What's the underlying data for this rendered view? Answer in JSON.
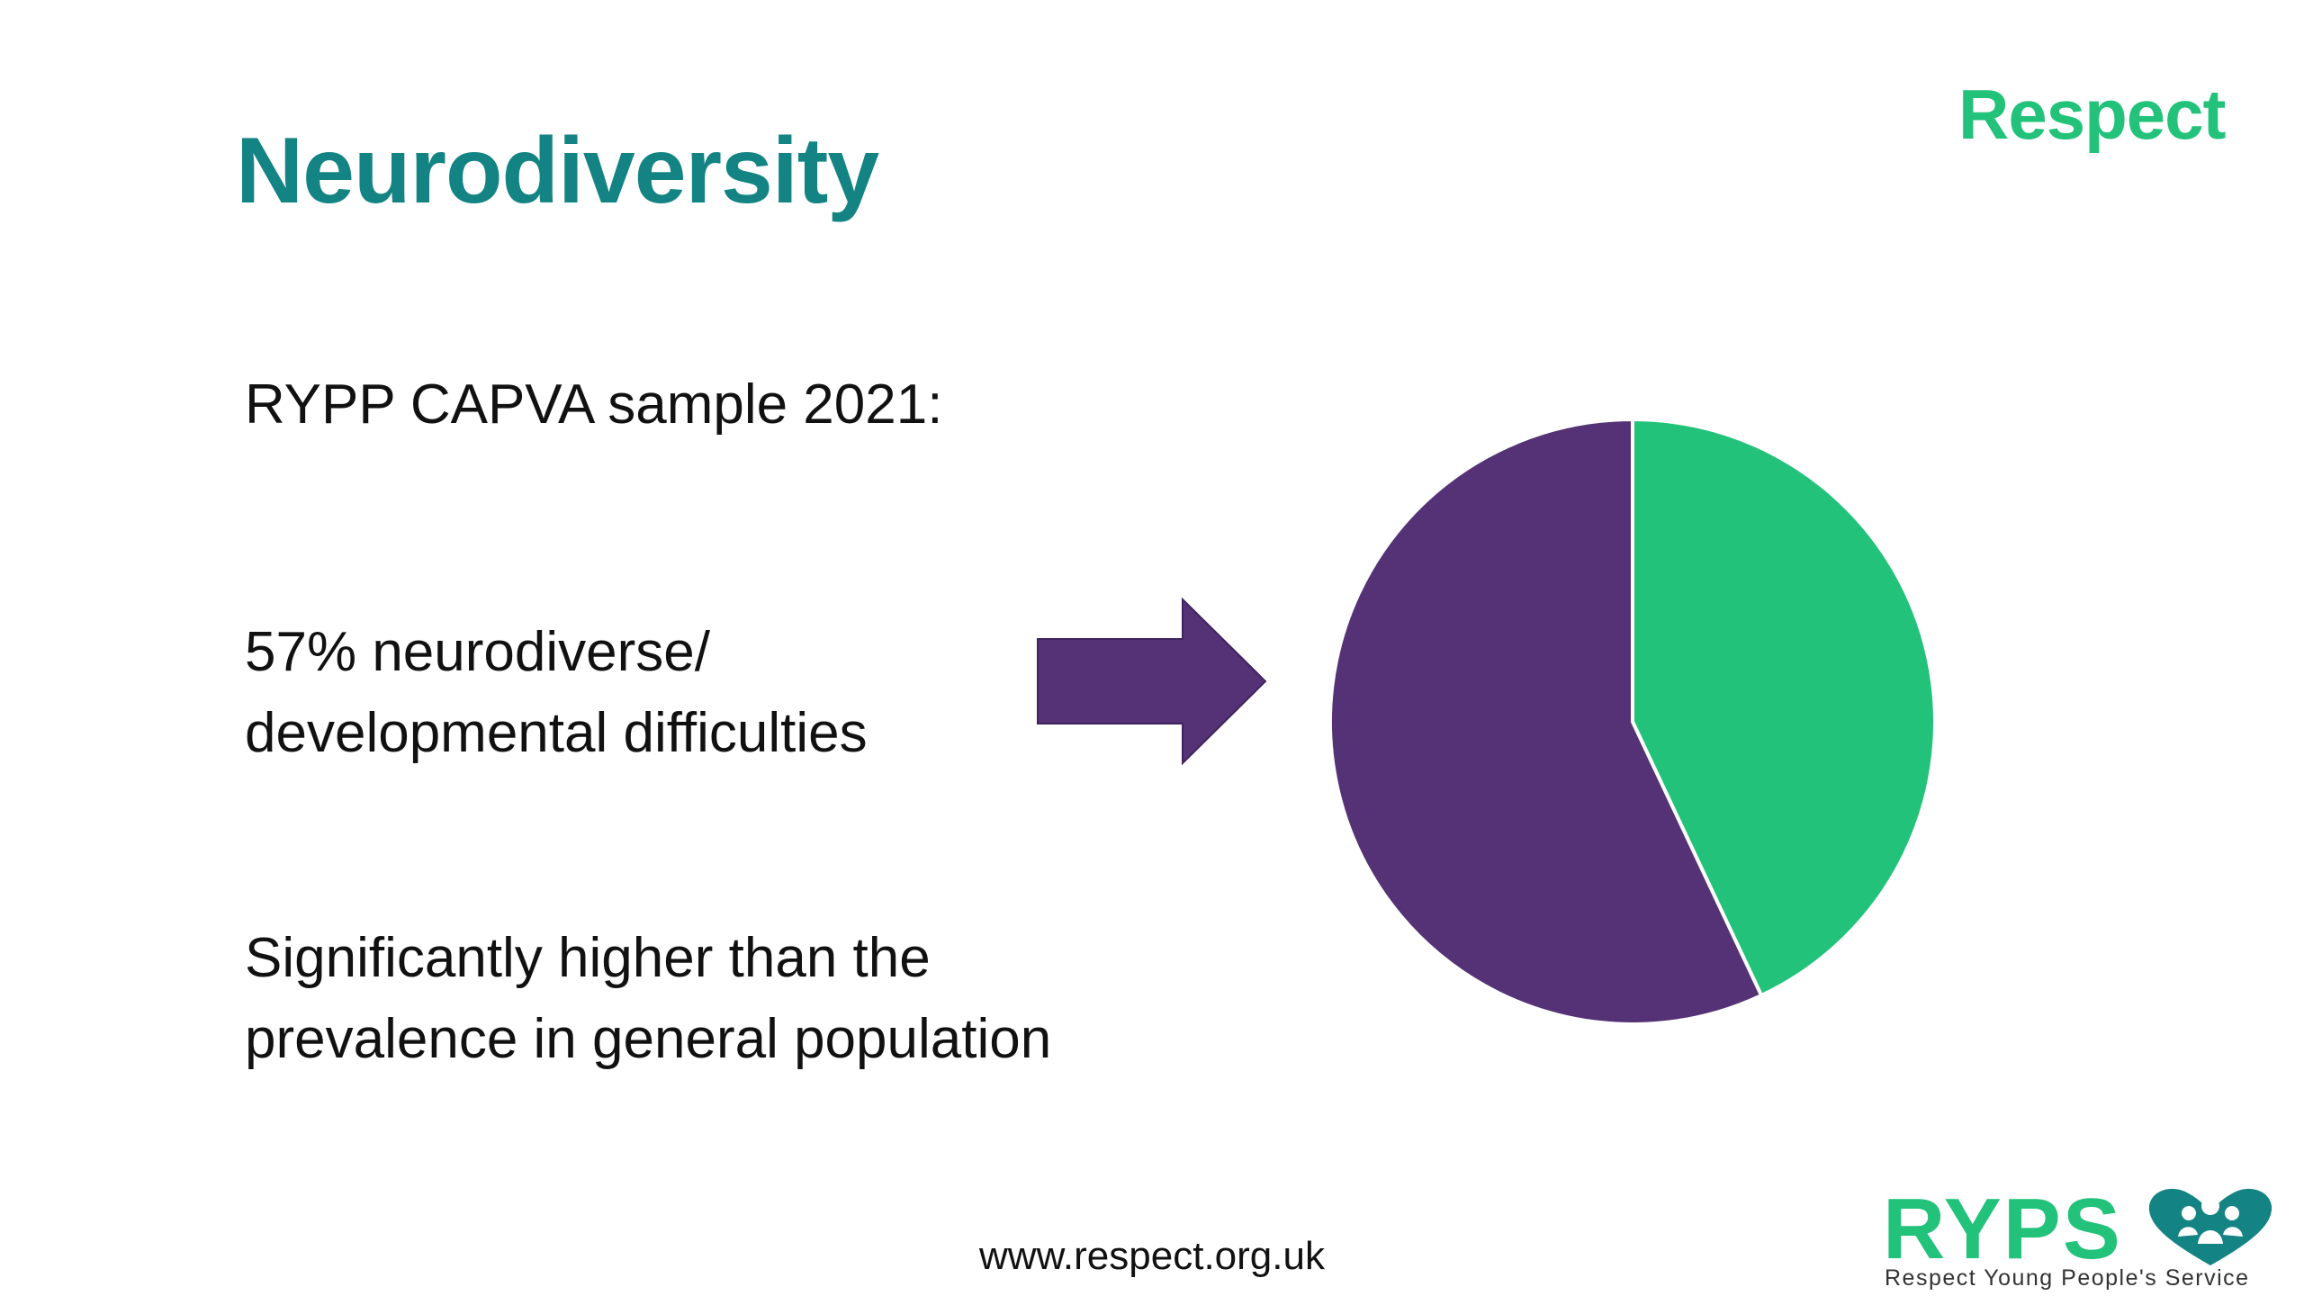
{
  "slide": {
    "title": "Neurodiversity",
    "logo_top": "Respect",
    "sample_label": "RYPP CAPVA sample 2021:",
    "stat_line1": "57% neurodiverse/",
    "stat_line2": "developmental difficulties",
    "higher_line1": "Significantly higher than the",
    "higher_line2": "prevalence in general population",
    "url": "www.respect.org.uk",
    "logo_ryps": "RYPS",
    "logo_ryps_tagline": "Respect Young People's Service"
  },
  "colors": {
    "title": "#138483",
    "brand_green": "#22c27a",
    "purple": "#553275",
    "text": "#111111"
  },
  "icons": {
    "arrow": "right-arrow-icon",
    "ryps_emblem": "heart-family-icon"
  },
  "chart_data": {
    "type": "pie",
    "categories": [
      "",
      ""
    ],
    "values": [
      43,
      57
    ],
    "colors": [
      "#22c27a",
      "#553275"
    ],
    "start_angle_deg": 0,
    "direction": "clockwise"
  }
}
